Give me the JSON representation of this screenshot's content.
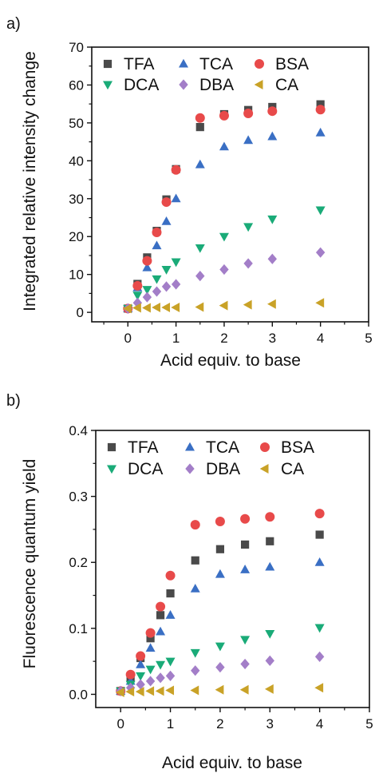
{
  "chart_data": [
    {
      "panel_label": "a)",
      "type": "scatter",
      "xlabel": "Acid equiv. to base",
      "ylabel": "Integrated relative intensity change",
      "xlim": [
        -0.75,
        5
      ],
      "ylim": [
        -2.5,
        70
      ],
      "xticks": [
        0,
        1,
        2,
        3,
        4,
        5
      ],
      "yticks": [
        0,
        10,
        20,
        30,
        40,
        50,
        60,
        70
      ],
      "grid": false,
      "legend_position": "top-left (inside, 3 columns)",
      "x": [
        0,
        0.2,
        0.4,
        0.6,
        0.8,
        1.0,
        1.5,
        2.0,
        2.5,
        3.0,
        4.0
      ],
      "series": [
        {
          "name": "TFA",
          "marker": "square",
          "color": "#4a4a4a",
          "values": [
            1.0,
            7.5,
            14.5,
            21.5,
            29.8,
            37.8,
            48.9,
            52.3,
            53.4,
            54.2,
            54.9
          ]
        },
        {
          "name": "TCA",
          "marker": "triangle-up",
          "color": "#3a6fc4",
          "values": [
            1.0,
            6.5,
            11.8,
            17.6,
            24.0,
            30.0,
            39.0,
            43.7,
            45.4,
            46.4,
            47.4
          ]
        },
        {
          "name": "BSA",
          "marker": "circle",
          "color": "#e84a4a",
          "values": [
            1.0,
            7.0,
            13.6,
            21.1,
            29.1,
            37.6,
            51.3,
            51.9,
            52.5,
            53.1,
            53.5
          ]
        },
        {
          "name": "DCA",
          "marker": "triangle-down",
          "color": "#1aab78",
          "values": [
            1.0,
            4.5,
            6.0,
            8.8,
            11.3,
            13.3,
            17.0,
            20.0,
            22.6,
            24.6,
            27.0
          ]
        },
        {
          "name": "DBA",
          "marker": "diamond",
          "color": "#a37ec8",
          "values": [
            1.0,
            2.5,
            4.0,
            5.5,
            6.8,
            7.4,
            9.6,
            11.3,
            12.9,
            14.1,
            15.8
          ]
        },
        {
          "name": "CA",
          "marker": "triangle-left",
          "color": "#c9a227",
          "values": [
            1.0,
            1.2,
            1.2,
            1.3,
            1.3,
            1.3,
            1.4,
            1.8,
            2.0,
            2.2,
            2.5
          ]
        }
      ]
    },
    {
      "panel_label": "b)",
      "type": "scatter",
      "xlabel": "Acid equiv. to base",
      "ylabel": "Fluorescence quantum yield",
      "xlim": [
        -0.5,
        5
      ],
      "ylim": [
        -0.02,
        0.4
      ],
      "xticks": [
        0,
        1,
        2,
        3,
        4,
        5
      ],
      "yticks": [
        0.0,
        0.1,
        0.2,
        0.3,
        0.4
      ],
      "ytick_labels": [
        "0.0",
        "0.1",
        "0.2",
        "0.3",
        "0.4"
      ],
      "grid": false,
      "legend_position": "top-left (inside, 3 columns)",
      "x": [
        0,
        0.2,
        0.4,
        0.6,
        0.8,
        1.0,
        1.5,
        2.0,
        2.5,
        3.0,
        4.0
      ],
      "series": [
        {
          "name": "TFA",
          "marker": "square",
          "color": "#4a4a4a",
          "values": [
            0.005,
            0.025,
            0.055,
            0.085,
            0.12,
            0.153,
            0.203,
            0.22,
            0.227,
            0.232,
            0.242
          ]
        },
        {
          "name": "TCA",
          "marker": "triangle-up",
          "color": "#3a6fc4",
          "values": [
            0.005,
            0.02,
            0.045,
            0.07,
            0.095,
            0.12,
            0.16,
            0.182,
            0.189,
            0.193,
            0.2
          ]
        },
        {
          "name": "BSA",
          "marker": "circle",
          "color": "#e84a4a",
          "values": [
            0.005,
            0.03,
            0.058,
            0.093,
            0.133,
            0.18,
            0.257,
            0.262,
            0.266,
            0.269,
            0.274
          ]
        },
        {
          "name": "DCA",
          "marker": "triangle-down",
          "color": "#1aab78",
          "values": [
            0.005,
            0.015,
            0.028,
            0.038,
            0.045,
            0.05,
            0.063,
            0.073,
            0.083,
            0.092,
            0.101
          ]
        },
        {
          "name": "DBA",
          "marker": "diamond",
          "color": "#a37ec8",
          "values": [
            0.005,
            0.01,
            0.015,
            0.02,
            0.025,
            0.028,
            0.036,
            0.041,
            0.046,
            0.051,
            0.057
          ]
        },
        {
          "name": "CA",
          "marker": "triangle-left",
          "color": "#c9a227",
          "values": [
            0.003,
            0.004,
            0.004,
            0.005,
            0.005,
            0.006,
            0.006,
            0.007,
            0.007,
            0.008,
            0.01
          ]
        }
      ]
    }
  ]
}
